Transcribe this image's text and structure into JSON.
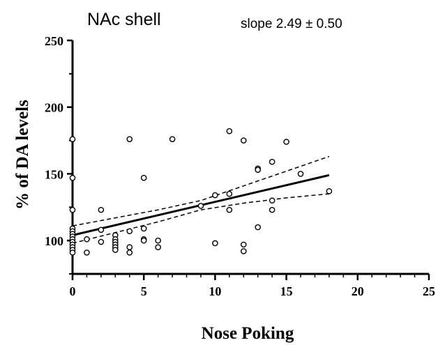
{
  "chart_data": {
    "type": "scatter",
    "title": "NAc shell",
    "annotation": "slope 2.49 ± 0.50",
    "xlabel": "Nose Poking",
    "ylabel": "% of DA levels",
    "xlim": [
      0,
      25
    ],
    "ylim": [
      75,
      250
    ],
    "x_ticks": [
      0,
      5,
      10,
      15,
      20,
      25
    ],
    "y_ticks": [
      100,
      150,
      200,
      250
    ],
    "grid": false,
    "series": [
      {
        "marker": "open-circle",
        "points": [
          [
            0,
            176
          ],
          [
            0,
            147
          ],
          [
            0,
            123
          ],
          [
            0,
            109
          ],
          [
            0,
            107
          ],
          [
            0,
            105
          ],
          [
            0,
            103
          ],
          [
            0,
            101
          ],
          [
            0,
            99
          ],
          [
            0,
            97
          ],
          [
            0,
            95
          ],
          [
            0,
            93
          ],
          [
            0,
            91
          ],
          [
            1,
            101
          ],
          [
            1,
            91
          ],
          [
            2,
            123
          ],
          [
            2,
            108
          ],
          [
            2,
            99
          ],
          [
            3,
            104
          ],
          [
            3,
            101
          ],
          [
            3,
            99
          ],
          [
            3,
            97
          ],
          [
            3,
            95
          ],
          [
            3,
            93
          ],
          [
            4,
            176
          ],
          [
            4,
            107
          ],
          [
            4,
            95
          ],
          [
            4,
            91
          ],
          [
            5,
            147
          ],
          [
            5,
            109
          ],
          [
            5,
            101
          ],
          [
            5,
            100
          ],
          [
            6,
            100
          ],
          [
            6,
            95
          ],
          [
            7,
            176
          ],
          [
            9,
            126
          ],
          [
            10,
            134
          ],
          [
            10,
            98
          ],
          [
            11,
            182
          ],
          [
            11,
            135
          ],
          [
            11,
            123
          ],
          [
            12,
            175
          ],
          [
            12,
            97
          ],
          [
            12,
            92
          ],
          [
            13,
            154
          ],
          [
            13,
            153
          ],
          [
            13,
            110
          ],
          [
            14,
            159
          ],
          [
            14,
            130
          ],
          [
            14,
            123
          ],
          [
            15,
            174
          ],
          [
            16,
            150
          ],
          [
            18,
            137
          ]
        ]
      }
    ],
    "regression_line": {
      "x": [
        0,
        18
      ],
      "y": [
        104,
        149
      ]
    },
    "confidence_band": {
      "x": [
        0,
        3,
        6,
        9,
        12,
        15,
        18
      ],
      "upper": [
        111,
        117,
        123,
        130,
        141,
        152,
        163
      ],
      "lower": [
        98,
        106,
        114,
        123,
        128,
        132,
        135
      ]
    }
  }
}
